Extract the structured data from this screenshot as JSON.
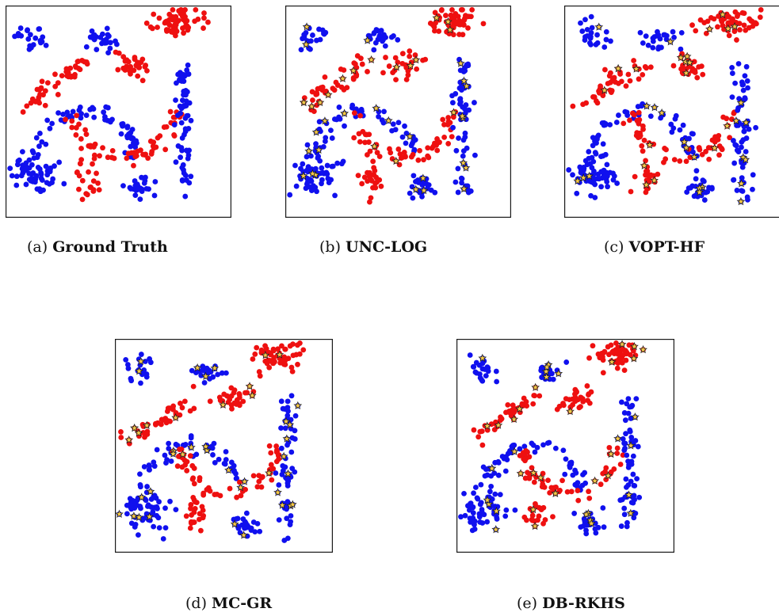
{
  "figure": {
    "panels": [
      {
        "id": "a",
        "prefix": "(a)",
        "title": "Ground Truth",
        "show_queries": false,
        "seed": 11
      },
      {
        "id": "b",
        "prefix": "(b)",
        "title": "UNC-LOG",
        "show_queries": true,
        "seed": 23
      },
      {
        "id": "c",
        "prefix": "(c)",
        "title": "VOPT-HF",
        "show_queries": true,
        "seed": 37
      },
      {
        "id": "d",
        "prefix": "(d)",
        "title": "MC-GR",
        "show_queries": true,
        "seed": 53
      },
      {
        "id": "e",
        "prefix": "(e)",
        "title": "DB-RKHS",
        "show_queries": true,
        "seed": 71
      }
    ],
    "colors": {
      "class_blue": "#1010ee",
      "class_red": "#ee1010",
      "query_fill": "#f7c948",
      "query_stroke": "#222222"
    }
  },
  "chart_data": {
    "type": "scatter",
    "title": "",
    "xlabel": "",
    "ylabel": "",
    "xlim": [
      0,
      1
    ],
    "ylim": [
      0,
      1
    ],
    "grid": false,
    "legend": "none",
    "clusters": [
      {
        "class": "blue",
        "shape": "blob",
        "center": [
          0.12,
          0.85
        ],
        "spread": [
          0.035,
          0.035
        ],
        "count": 22
      },
      {
        "class": "blue",
        "shape": "blob",
        "center": [
          0.42,
          0.84
        ],
        "spread": [
          0.035,
          0.025
        ],
        "count": 24
      },
      {
        "class": "red",
        "shape": "blob",
        "center": [
          0.74,
          0.92
        ],
        "spread": [
          0.06,
          0.035
        ],
        "count": 55
      },
      {
        "class": "red",
        "shape": "blob",
        "center": [
          0.55,
          0.72
        ],
        "spread": [
          0.04,
          0.03
        ],
        "count": 30
      },
      {
        "class": "red",
        "shape": "line",
        "from": [
          0.08,
          0.53
        ],
        "to": [
          0.36,
          0.73
        ],
        "spread": 0.025,
        "count": 45
      },
      {
        "class": "blue",
        "shape": "arc",
        "center": [
          0.35,
          0.28
        ],
        "radius": 0.22,
        "angles": [
          0,
          180
        ],
        "spread": 0.02,
        "count": 60
      },
      {
        "class": "red",
        "shape": "arc",
        "center": [
          0.52,
          0.5
        ],
        "radius": 0.22,
        "angles": [
          180,
          360
        ],
        "spread": 0.02,
        "count": 60
      },
      {
        "class": "blue",
        "shape": "line",
        "from": [
          0.79,
          0.1
        ],
        "to": [
          0.79,
          0.74
        ],
        "spread": 0.02,
        "count": 65
      },
      {
        "class": "blue",
        "shape": "blob",
        "center": [
          0.13,
          0.2
        ],
        "spread": [
          0.05,
          0.045
        ],
        "count": 60
      },
      {
        "class": "blue",
        "shape": "blob",
        "center": [
          0.6,
          0.14
        ],
        "spread": [
          0.03,
          0.03
        ],
        "count": 28
      },
      {
        "class": "red",
        "shape": "blob",
        "center": [
          0.37,
          0.18
        ],
        "spread": [
          0.025,
          0.045
        ],
        "count": 22
      }
    ],
    "queried_points": {
      "b": 45,
      "c": 40,
      "d": 45,
      "e": 45
    }
  }
}
